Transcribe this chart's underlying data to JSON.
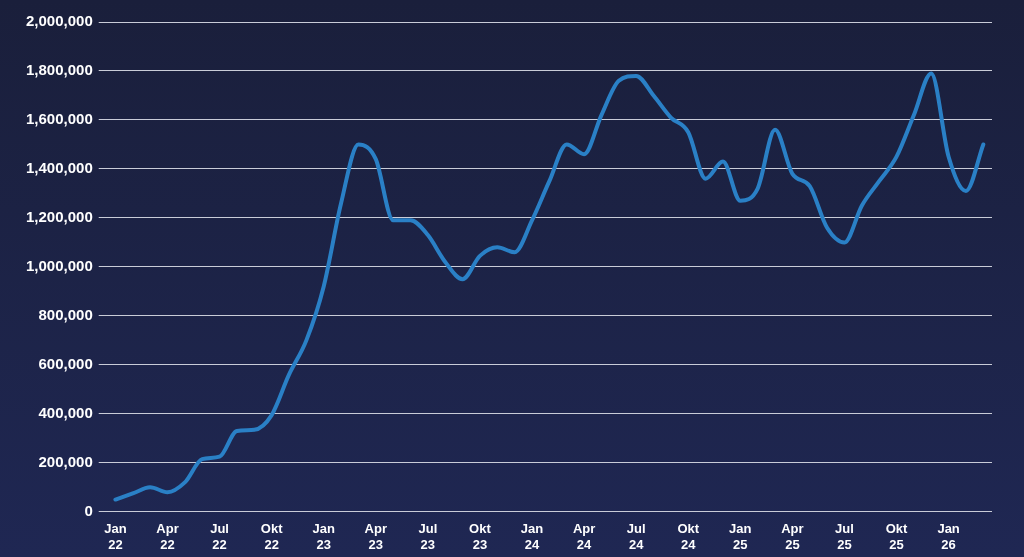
{
  "chart_data": {
    "type": "line",
    "categories": [
      "Jan 22",
      null,
      null,
      "Apr 22",
      null,
      null,
      "Jul 22",
      null,
      null,
      "Okt 22",
      null,
      null,
      "Jan 23",
      null,
      null,
      "Apr 23",
      null,
      null,
      "Jul 23",
      null,
      null,
      "Okt 23",
      null,
      null,
      "Jan 24",
      null,
      null,
      "Apr 24",
      null,
      null,
      "Jul 24",
      null,
      null,
      "Okt 24",
      null,
      null,
      "Jan 25",
      null,
      null,
      "Apr 25",
      null,
      null,
      "Jul 25",
      null,
      null,
      "Okt 25",
      null,
      null,
      "Jan 26",
      null,
      null
    ],
    "series": [
      {
        "color": "#2a80c6",
        "values": [
          50000,
          75000,
          100000,
          80000,
          120000,
          215000,
          225000,
          330000,
          335000,
          395000,
          560000,
          700000,
          920000,
          1260000,
          1500000,
          1440000,
          1190000,
          1190000,
          1130000,
          1020000,
          950000,
          1045000,
          1080000,
          1060000,
          1190000,
          1350000,
          1500000,
          1460000,
          1620000,
          1760000,
          1780000,
          1700000,
          1610000,
          1550000,
          1360000,
          1430000,
          1270000,
          1320000,
          1560000,
          1380000,
          1330000,
          1160000,
          1100000,
          1250000,
          1350000,
          1450000,
          1620000,
          1790000,
          1450000,
          1310000,
          1500000
        ]
      }
    ],
    "ylim": [
      0,
      2000000
    ],
    "yticks": [
      {
        "value": 0,
        "label": "0"
      },
      {
        "value": 200000,
        "label": "200,000"
      },
      {
        "value": 400000,
        "label": "400,000"
      },
      {
        "value": 600000,
        "label": "600,000"
      },
      {
        "value": 800000,
        "label": "800,000"
      },
      {
        "value": 1000000,
        "label": "1,000,000"
      },
      {
        "value": 1200000,
        "label": "1,200,000"
      },
      {
        "value": 1400000,
        "label": "1,400,000"
      },
      {
        "value": 1600000,
        "label": "1,600,000"
      },
      {
        "value": 1800000,
        "label": "1,800,000"
      },
      {
        "value": 2000000,
        "label": "2,000,000"
      }
    ],
    "grid": "y",
    "marker": "none"
  }
}
